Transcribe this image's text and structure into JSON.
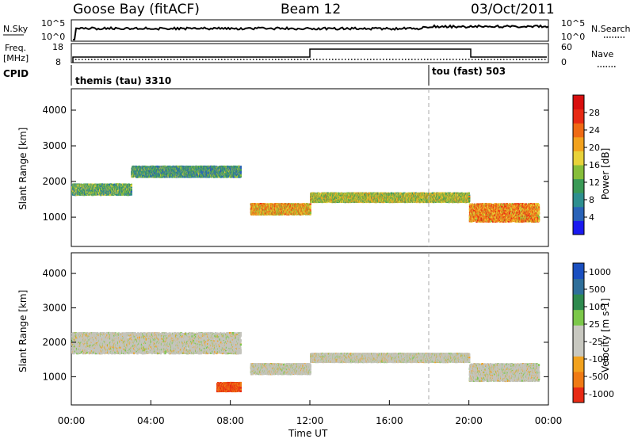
{
  "header": {
    "station": "Goose Bay (fitACF)",
    "beam": "Beam 12",
    "date": "03/Oct/2011"
  },
  "top_strip": {
    "left_labels": {
      "nsky": "N.Sky",
      "freq_line1": "Freq.",
      "freq_line2": "[MHz]",
      "cpid": "CPID"
    },
    "right_labels": {
      "nsearch": "N.Search",
      "nave": "Nave"
    },
    "nsky_ticks": [
      "10^5",
      "10^0"
    ],
    "nsearch_ticks": [
      "10^5",
      "10^0"
    ],
    "freq_ticks": [
      "18",
      "8"
    ],
    "nave_ticks": [
      "60",
      "0"
    ],
    "cpid_left": "themis (tau) 3310",
    "cpid_right": "tou (fast) 503"
  },
  "chart_data": [
    {
      "type": "heatmap",
      "name": "power",
      "title": "",
      "xlabel": "",
      "ylabel": "Slant Range [km]",
      "xlim": [
        0,
        24
      ],
      "ylim": [
        180,
        4600
      ],
      "yticks": [
        1000,
        2000,
        3000,
        4000
      ],
      "colorbar": {
        "label": "Power [dB]",
        "ticks": [
          "4",
          "8",
          "12",
          "16",
          "20",
          "24",
          "28"
        ],
        "colors": [
          "#1a1af0",
          "#2a63b8",
          "#2e8f8f",
          "#3a9a56",
          "#86be3a",
          "#e8d23a",
          "#f2a21e",
          "#ef6a14",
          "#e82a14",
          "#d80e0e"
        ]
      },
      "echo_bands": [
        {
          "t_start": 0.0,
          "t_end": 3.0,
          "range_start": 1650,
          "range_end": 1950,
          "value": 12
        },
        {
          "t_start": 3.0,
          "t_end": 8.5,
          "range_start": 2150,
          "range_end": 2450,
          "value": 10
        },
        {
          "t_start": 9.0,
          "t_end": 12.0,
          "range_start": 1100,
          "range_end": 1400,
          "value": 20
        },
        {
          "t_start": 12.0,
          "t_end": 20.0,
          "range_start": 1450,
          "range_end": 1700,
          "value": 16
        },
        {
          "t_start": 20.0,
          "t_end": 23.5,
          "range_start": 900,
          "range_end": 1400,
          "value": 22
        }
      ]
    },
    {
      "type": "heatmap",
      "name": "velocity",
      "title": "",
      "xlabel": "Time UT",
      "ylabel": "Slant Range [km]",
      "xlim": [
        0,
        24
      ],
      "ylim": [
        180,
        4600
      ],
      "yticks": [
        1000,
        2000,
        3000,
        4000
      ],
      "xticks": [
        "00:00",
        "04:00",
        "08:00",
        "12:00",
        "16:00",
        "20:00",
        "00:00"
      ],
      "colorbar": {
        "label": "Velocity [m s-1]",
        "ticks": [
          "1000",
          "500",
          "100",
          "25",
          "-25",
          "-100",
          "-500",
          "-1000"
        ],
        "colors": [
          "#1a4fc0",
          "#2f6f9a",
          "#2e8a4e",
          "#7cc84a",
          "#c8c8c0",
          "#c8c8c0",
          "#f2a21e",
          "#ef7a14",
          "#e82a14"
        ]
      },
      "echo_bands": [
        {
          "t_start": 0.0,
          "t_end": 8.5,
          "range_start": 1700,
          "range_end": 2300,
          "value": 0
        },
        {
          "t_start": 9.0,
          "t_end": 12.0,
          "range_start": 1100,
          "range_end": 1400,
          "value": 0
        },
        {
          "t_start": 12.0,
          "t_end": 20.0,
          "range_start": 1450,
          "range_end": 1700,
          "value": 0
        },
        {
          "t_start": 7.3,
          "t_end": 8.5,
          "range_start": 600,
          "range_end": 850,
          "value": -500
        },
        {
          "t_start": 20.0,
          "t_end": 23.5,
          "range_start": 900,
          "range_end": 1400,
          "value": 0
        }
      ]
    }
  ]
}
